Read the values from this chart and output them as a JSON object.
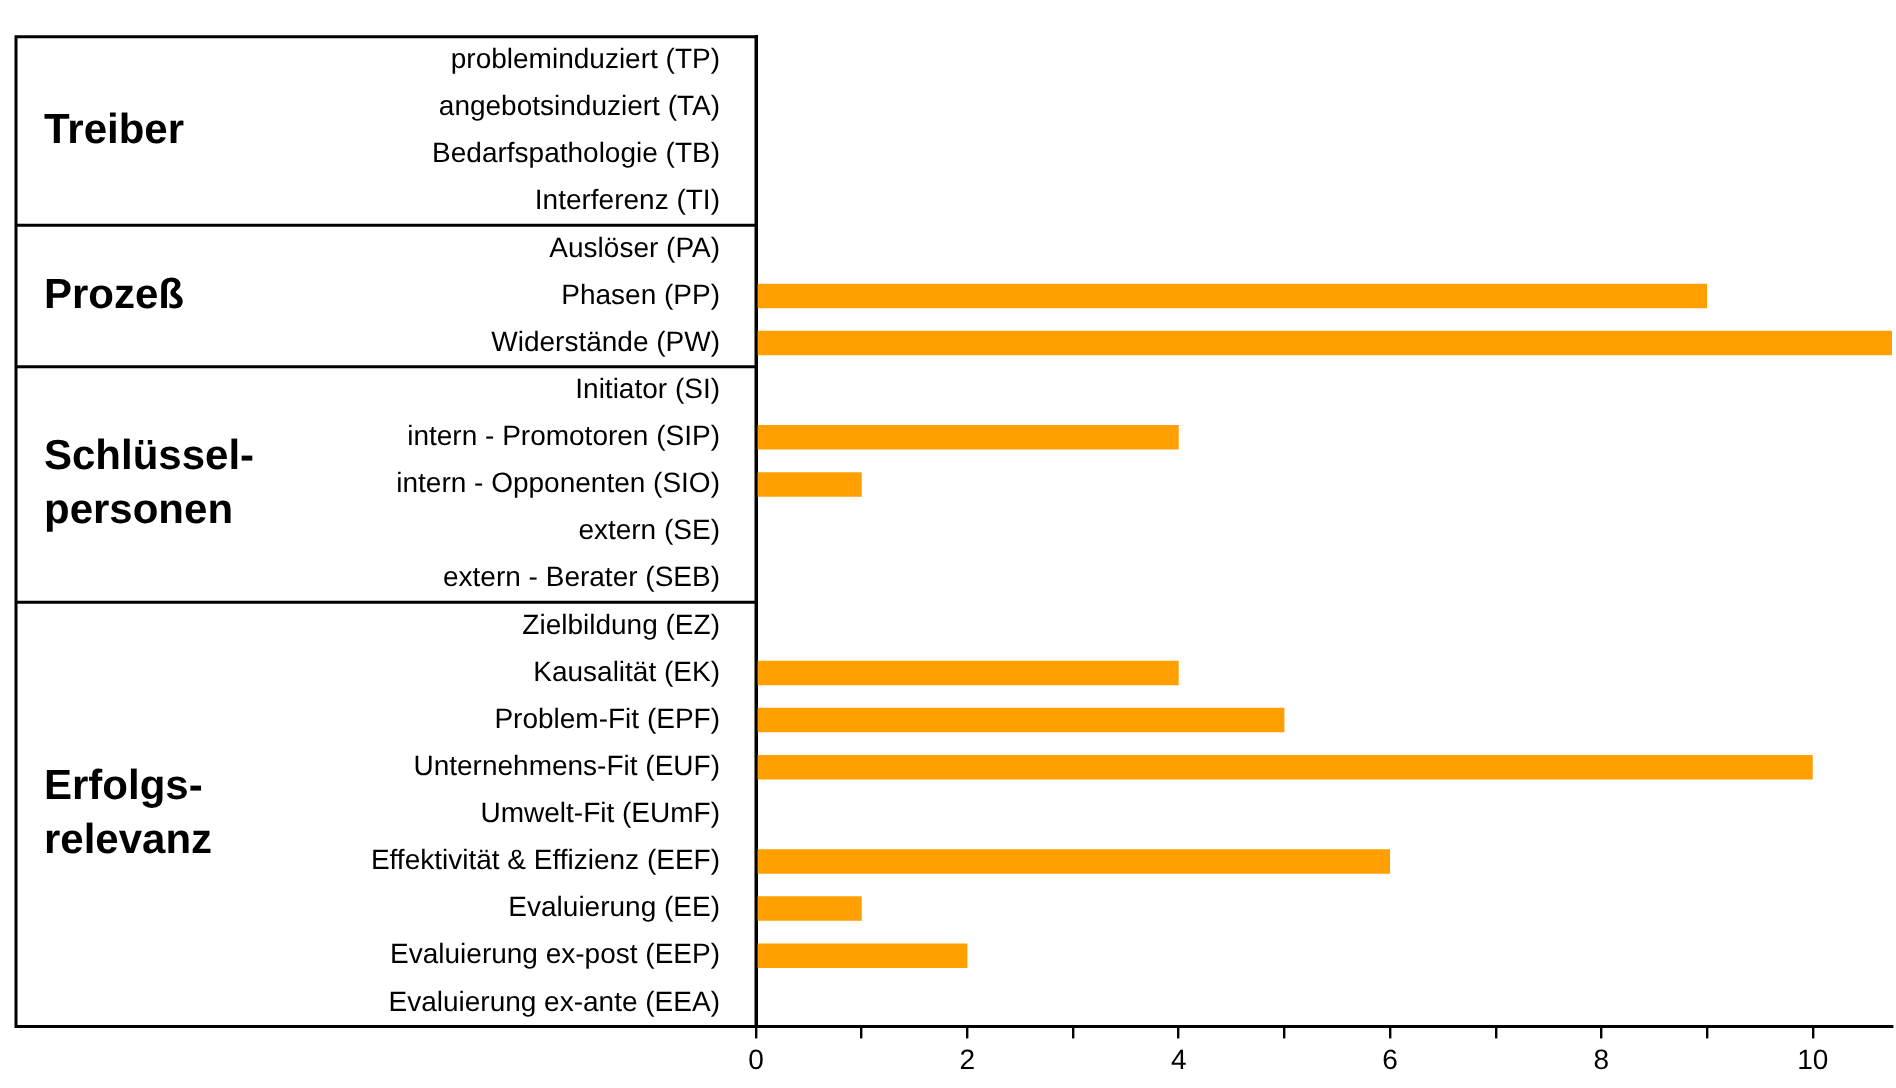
{
  "chart_data": {
    "type": "bar",
    "orientation": "horizontal",
    "categories": [
      "probleminduziert (TP)",
      "angebotsinduziert (TA)",
      "Bedarfspathologie (TB)",
      "Interferenz (TI)",
      "Auslöser (PA)",
      "Phasen (PP)",
      "Widerstände (PW)",
      "Initiator (SI)",
      "intern - Promotoren (SIP)",
      "intern - Opponenten (SIO)",
      "extern (SE)",
      "extern - Berater (SEB)",
      "Zielbildung (EZ)",
      "Kausalität (EK)",
      "Problem-Fit (EPF)",
      "Unternehmens-Fit (EUF)",
      "Umwelt-Fit (EUmF)",
      "Effektivität & Effizienz (EEF)",
      "Evaluierung (EE)",
      "Evaluierung ex-post (EEP)",
      "Evaluierung ex-ante (EEA)"
    ],
    "values": [
      0,
      0,
      0,
      0,
      0,
      9,
      10.75,
      0,
      4,
      1,
      0,
      0,
      0,
      4,
      5,
      10,
      0,
      6,
      1,
      2,
      0
    ],
    "color": "#ff9f00",
    "xlim": [
      0,
      10.75
    ],
    "xticks": [
      0,
      {
        "value": 1,
        "label": null
      },
      2,
      {
        "value": 3,
        "label": null
      },
      4,
      {
        "value": 5,
        "label": null
      },
      6,
      {
        "value": 7,
        "label": null
      },
      8,
      {
        "value": 9,
        "label": null
      },
      10
    ],
    "grid": false,
    "legend": false,
    "annotations": [
      "Treiber",
      "Prozeß",
      "Schlüssel-\npersonen",
      "Erfolgs-\nrelevanz"
    ]
  }
}
